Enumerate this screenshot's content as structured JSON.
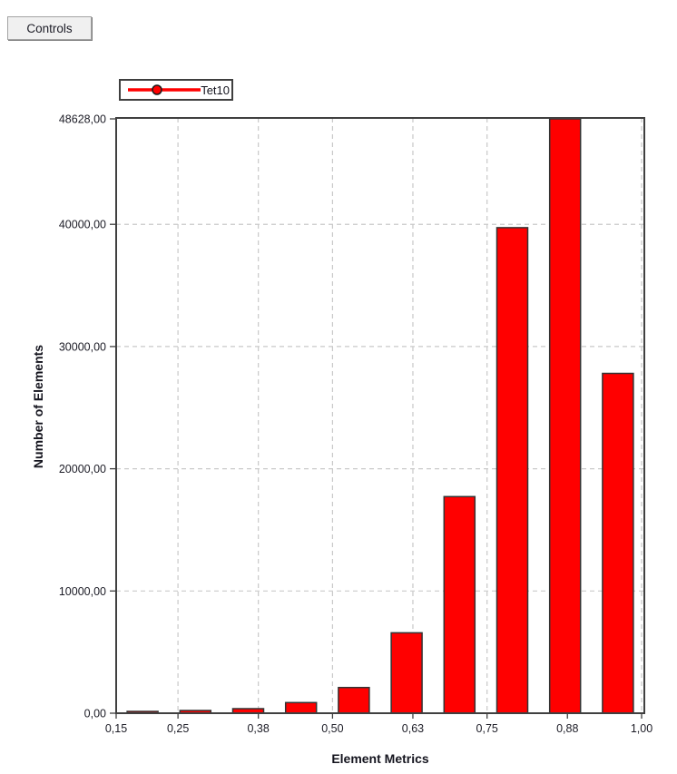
{
  "toolbar": {
    "controls_label": "Controls"
  },
  "legend": {
    "series_label": "Tet10",
    "line_color": "#ff0000",
    "marker_stroke": "#1a1a1a"
  },
  "chart_data": {
    "type": "bar",
    "title": "",
    "xlabel": "Element Metrics",
    "ylabel": "Number of Elements",
    "legend_position": "top-left",
    "grid": true,
    "series": [
      {
        "name": "Tet10",
        "color": "#ff0000",
        "values": [
          150,
          220,
          370,
          870,
          2100,
          6580,
          17720,
          39730,
          48628,
          27800
        ]
      }
    ],
    "x_axis": {
      "range": [
        0.15,
        1.0
      ],
      "ticks": [
        {
          "value": 0.15,
          "label": "0,15",
          "gridline": false
        },
        {
          "value": 0.25,
          "label": "0,25",
          "gridline": true
        },
        {
          "value": 0.38,
          "label": "0,38",
          "gridline": true
        },
        {
          "value": 0.5,
          "label": "0,50",
          "gridline": true
        },
        {
          "value": 0.63,
          "label": "0,63",
          "gridline": true
        },
        {
          "value": 0.75,
          "label": "0,75",
          "gridline": true
        },
        {
          "value": 0.88,
          "label": "0,88",
          "gridline": true
        },
        {
          "value": 1.0,
          "label": "1,00",
          "gridline": true
        }
      ]
    },
    "y_axis": {
      "range": [
        0,
        48628
      ],
      "ticks": [
        {
          "value": 0,
          "label": "0,00",
          "gridline": false
        },
        {
          "value": 10000,
          "label": "10000,00",
          "gridline": true
        },
        {
          "value": 20000,
          "label": "20000,00",
          "gridline": true
        },
        {
          "value": 30000,
          "label": "30000,00",
          "gridline": true
        },
        {
          "value": 40000,
          "label": "40000,00",
          "gridline": true
        },
        {
          "value": 48628,
          "label": "48628,00",
          "gridline": false
        }
      ]
    },
    "colors": {
      "bar_fill": "#ff0000",
      "bar_stroke": "#333333",
      "grid": "#c9c9c9",
      "axis": "#404040",
      "text": "#1c1c26"
    }
  }
}
